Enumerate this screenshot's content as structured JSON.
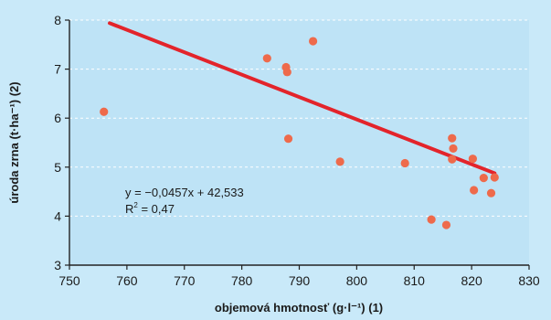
{
  "chart_data": {
    "type": "scatter",
    "xlabel": "objemová hmotnosť (g·l⁻¹) (1)",
    "ylabel": "úroda zrna (t·ha⁻¹) (2)",
    "xlim": [
      750,
      830
    ],
    "ylim": [
      3,
      8
    ],
    "xticks": [
      750,
      760,
      770,
      780,
      790,
      800,
      810,
      820,
      830
    ],
    "yticks": [
      3,
      4,
      5,
      6,
      7,
      8
    ],
    "grid": "horizontal-dashed",
    "colors": {
      "plot_background": "#bee3f6",
      "page_background": "#c9e9f9",
      "points": "#ee6a4b",
      "trendline": "#e3242b",
      "grid": "#ffffff"
    },
    "points": [
      {
        "x": 756,
        "y": 6.13
      },
      {
        "x": 784.4,
        "y": 7.22
      },
      {
        "x": 787.7,
        "y": 7.04
      },
      {
        "x": 787.9,
        "y": 6.94
      },
      {
        "x": 788.1,
        "y": 5.58
      },
      {
        "x": 792.4,
        "y": 7.57
      },
      {
        "x": 797.1,
        "y": 5.11
      },
      {
        "x": 808.4,
        "y": 5.08
      },
      {
        "x": 813,
        "y": 3.93
      },
      {
        "x": 815.6,
        "y": 3.82
      },
      {
        "x": 816.6,
        "y": 5.59
      },
      {
        "x": 816.8,
        "y": 5.38
      },
      {
        "x": 816.6,
        "y": 5.16
      },
      {
        "x": 820.2,
        "y": 5.17
      },
      {
        "x": 820.4,
        "y": 4.53
      },
      {
        "x": 822.1,
        "y": 4.78
      },
      {
        "x": 823.4,
        "y": 4.47
      },
      {
        "x": 824,
        "y": 4.79
      }
    ],
    "trendline": {
      "x_start": 757,
      "x_end": 824,
      "slope": -0.0457,
      "intercept": 42.533
    },
    "annotation_equation": "y = −0,0457x + 42,533",
    "annotation_r2_label": "R",
    "annotation_r2_exp": "2",
    "annotation_r2_value": " = 0,47"
  }
}
